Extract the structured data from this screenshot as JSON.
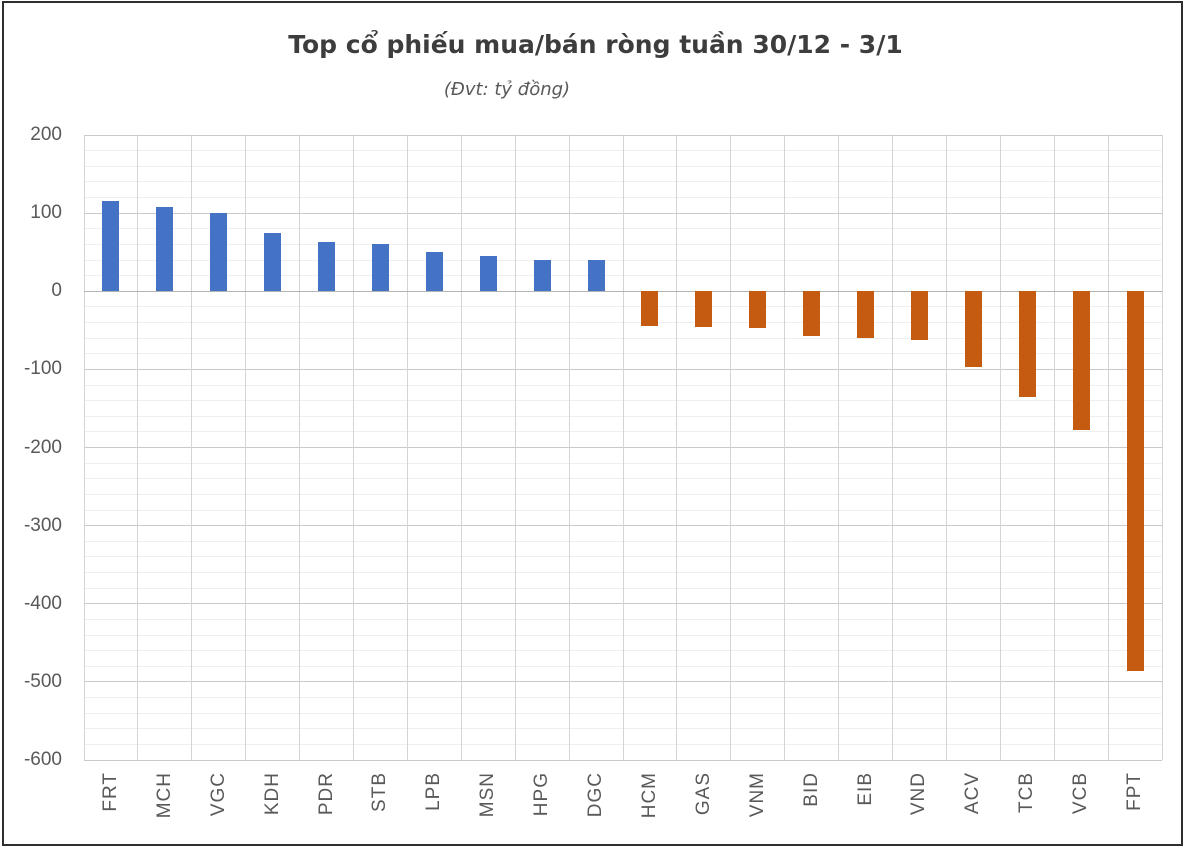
{
  "window": {
    "background_color": "#ffffff",
    "border_color": "#2e2e2e"
  },
  "chart": {
    "title": "Top cổ phiếu mua/bán ròng tuần 30/12 - 3/1",
    "subtitle": "(Đvt: tỷ đồng)"
  },
  "chart_data": {
    "type": "bar",
    "title": "Top cổ phiếu mua/bán ròng tuần 30/12 - 3/1",
    "subtitle": "(Đvt: tỷ đồng)",
    "unit": "tỷ đồng",
    "categories": [
      "FRT",
      "MCH",
      "VGC",
      "KDH",
      "PDR",
      "STB",
      "LPB",
      "MSN",
      "HPG",
      "DGC",
      "HCM",
      "GAS",
      "VNM",
      "BID",
      "EIB",
      "VND",
      "ACV",
      "TCB",
      "VCB",
      "FPT"
    ],
    "values": [
      115,
      108,
      100,
      75,
      63,
      61,
      50,
      45,
      40,
      40,
      -44,
      -46,
      -47,
      -57,
      -60,
      -62,
      -97,
      -135,
      -177,
      -486
    ],
    "series_semantics": "positive = net buy (mua ròng), negative = net sell (bán ròng)",
    "positive_color": "#4472C4",
    "negative_color": "#C55A11",
    "xlabel": "",
    "ylabel": "",
    "ylim": [
      -600,
      200
    ],
    "y_major_step": 100,
    "y_minor_step": 20,
    "y_tick_labels": [
      "200",
      "100",
      "0",
      "-100",
      "-200",
      "-300",
      "-400",
      "-500",
      "-600"
    ],
    "grid": true,
    "legend_position": "none",
    "colors": {
      "major_gridline": "#c9c9c9",
      "minor_gridline": "#efefef",
      "vertical_gridline": "#d4d4d4",
      "zero_axis": "#b3b3b3",
      "tick_text": "#595959",
      "title_text": "#3d3d3d"
    }
  }
}
